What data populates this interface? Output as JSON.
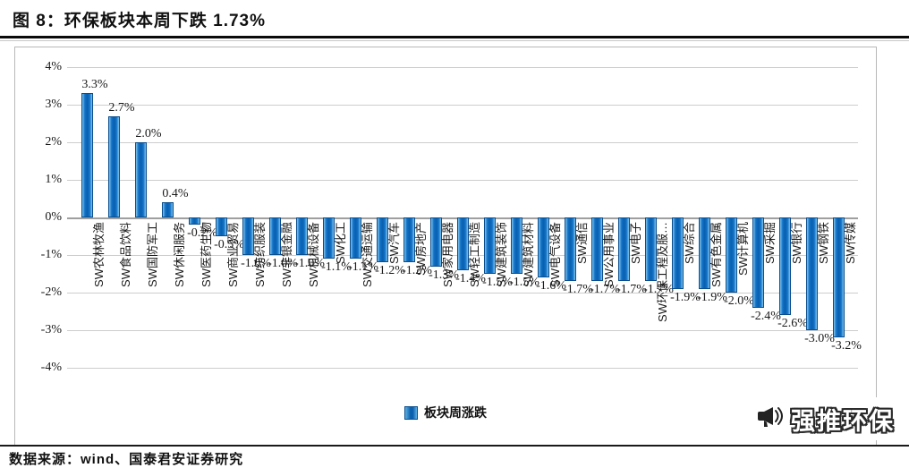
{
  "figure": {
    "title": "图 8：环保板块本周下跌 1.73%"
  },
  "footer": {
    "source": "数据来源：wind、国泰君安证券研究"
  },
  "logo": {
    "text": "强推环保",
    "icon": "megaphone-icon"
  },
  "chart_data": {
    "type": "bar",
    "title": "图 8：环保板块本周下跌 1.73%",
    "series_name": "板块周涨跌",
    "legend": [
      "板块周涨跌"
    ],
    "legend_position": "bottom",
    "grid": true,
    "ylim": [
      -4,
      4
    ],
    "ytick_labels": [
      "4%",
      "3%",
      "2%",
      "1%",
      "0%",
      "-1%",
      "-2%",
      "-3%",
      "-4%"
    ],
    "bar_color": "#0a5fae",
    "categories": [
      "SW农林牧渔",
      "SW食品饮料",
      "SW国防军工",
      "SW休闲服务",
      "SW医药生物",
      "SW商业贸易",
      "SW纺织服装",
      "SW非银金融",
      "SW机械设备",
      "SW化工",
      "SW交通运输",
      "SW汽车",
      "SW房地产",
      "SW家用电器",
      "SW轻工制造",
      "SW建筑装饰",
      "SW建筑材料",
      "SW电气设备",
      "SW通信",
      "SW公用事业",
      "SW电子",
      "SW环保工程及服…",
      "SW综合",
      "SW有色金属",
      "SW计算机",
      "SW采掘",
      "SW银行",
      "SW钢铁",
      "SW传媒"
    ],
    "values": [
      3.3,
      2.7,
      2.0,
      0.4,
      -0.2,
      -0.5,
      -1.0,
      -1.0,
      -1.0,
      -1.1,
      -1.1,
      -1.2,
      -1.2,
      -1.3,
      -1.4,
      -1.5,
      -1.5,
      -1.6,
      -1.7,
      -1.7,
      -1.7,
      -1.7,
      -1.9,
      -1.9,
      -2.0,
      -2.4,
      -2.6,
      -3.0,
      -3.2
    ],
    "data_labels": [
      "3.3%",
      "2.7%",
      "2.0%",
      "0.4%",
      "-0.2%",
      "-0.5%",
      "-1.0%",
      "-1.0%",
      "-1.0%",
      "-1.1%",
      "-1.1%",
      "-1.2%",
      "-1.2%",
      "-1.3%",
      "-1.4%",
      "-1.5%",
      "-1.5%",
      "-1.6%",
      "-1.7%",
      "-1.7%",
      "-1.7%",
      "-1.7%",
      "-1.9%",
      "-1.9%",
      "-2.0%",
      "-2.4%",
      "-2.6%",
      "-3.0%",
      "-3.2%"
    ]
  }
}
